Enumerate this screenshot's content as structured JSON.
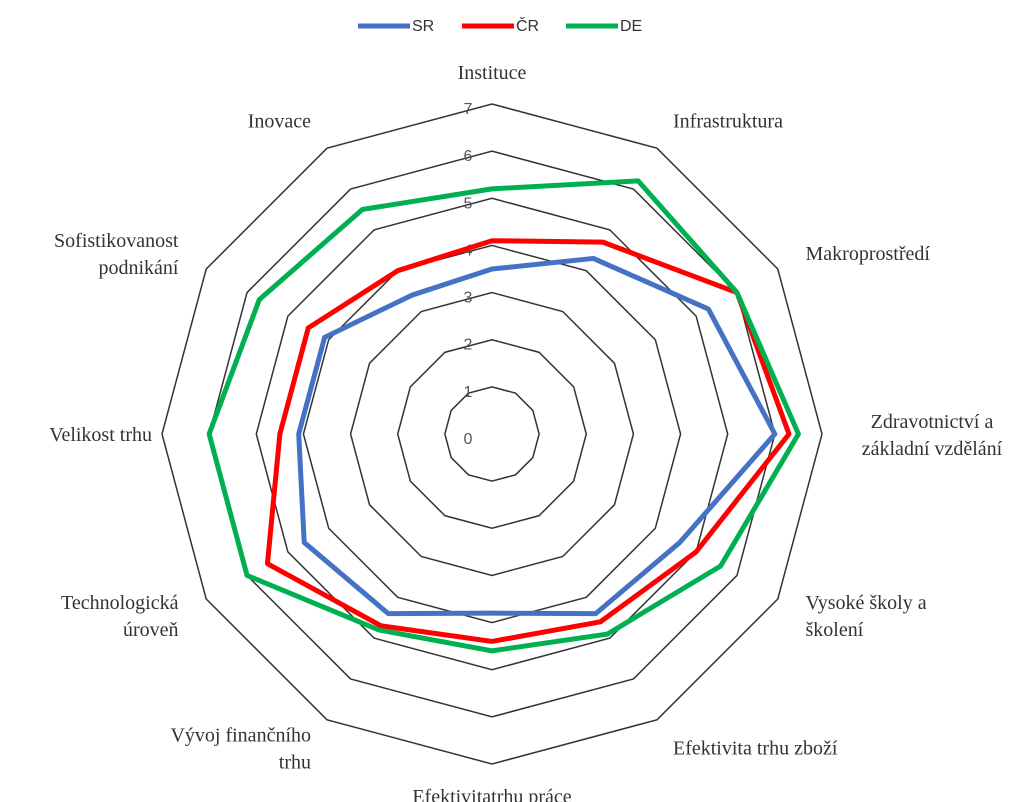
{
  "chart_data": {
    "type": "radar",
    "categories": [
      "Instituce",
      "Infrastruktura",
      "Makroprostředí",
      "Zdravotnictví a\nzákladní vzdělání",
      "Vysoké školy a\nškolení",
      "Efektivita trhu zboží",
      "Efektivitatrhu práce",
      "Vývoj finančního\ntrhu",
      "Technologická\núroveň",
      "Velikost trhu",
      "Sofistikovanost\npodnikání",
      "Inovace"
    ],
    "series": [
      {
        "name": "SR",
        "color": "#4472c4",
        "values": [
          3.5,
          4.3,
          5.3,
          6.0,
          4.6,
          4.4,
          3.8,
          4.4,
          4.6,
          4.1,
          4.1,
          3.4
        ]
      },
      {
        "name": "ČR",
        "color": "#ff0000",
        "values": [
          4.1,
          4.7,
          6.0,
          6.3,
          5.0,
          4.6,
          4.4,
          4.7,
          5.5,
          4.5,
          4.5,
          4.0
        ]
      },
      {
        "name": "DE",
        "color": "#00b050",
        "values": [
          5.2,
          6.2,
          6.0,
          6.5,
          5.6,
          4.9,
          4.6,
          4.8,
          6.0,
          6.0,
          5.7,
          5.5
        ]
      }
    ],
    "ylim": [
      0,
      7
    ],
    "yticks": [
      0,
      1,
      2,
      3,
      4,
      5,
      6,
      7
    ],
    "grid": true,
    "legend": "top"
  }
}
